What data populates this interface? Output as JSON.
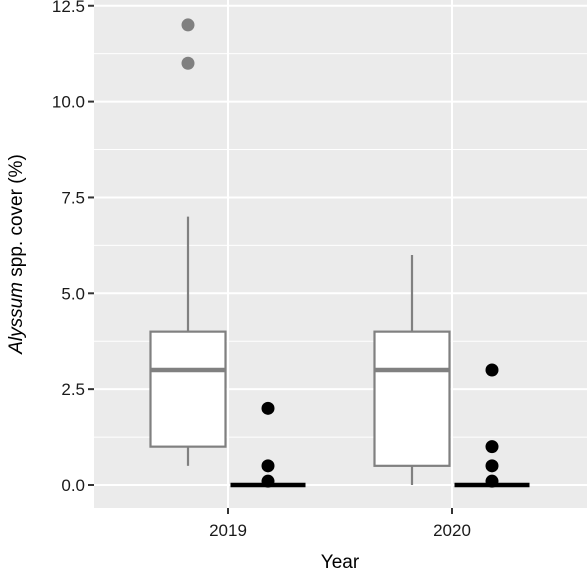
{
  "chart_data": {
    "type": "boxplot",
    "xlabel": "Year",
    "ylabel_italic": "Alyssum",
    "ylabel_rest": " spp. cover (%)",
    "ylim": [
      -0.6,
      12.65
    ],
    "yticks": [
      0.0,
      2.5,
      5.0,
      7.5,
      10.0,
      12.5
    ],
    "ytick_labels": [
      "0.0",
      "2.5",
      "5.0",
      "7.5",
      "10.0",
      "12.5"
    ],
    "categories": [
      "2019",
      "2020"
    ],
    "grid": true,
    "colors": {
      "panel": "#ebebeb",
      "grid": "#ffffff",
      "box_gray": "#808080",
      "box_black": "#000000"
    },
    "series": [
      {
        "color": "gray",
        "boxes": [
          {
            "category": "2019",
            "min": 0.5,
            "q1": 1.0,
            "median": 3.0,
            "q3": 4.0,
            "max": 7.0,
            "outliers": [
              11.0,
              12.0
            ]
          },
          {
            "category": "2020",
            "min": 0.0,
            "q1": 0.5,
            "median": 3.0,
            "q3": 4.0,
            "max": 6.0,
            "outliers": []
          }
        ]
      },
      {
        "color": "black",
        "boxes": [
          {
            "category": "2019",
            "min": 0.0,
            "q1": 0.0,
            "median": 0.0,
            "q3": 0.0,
            "max": 0.0,
            "outliers": [
              0.1,
              0.5,
              2.0
            ]
          },
          {
            "category": "2020",
            "min": 0.0,
            "q1": 0.0,
            "median": 0.0,
            "q3": 0.0,
            "max": 0.0,
            "outliers": [
              0.1,
              0.5,
              1.0,
              3.0
            ]
          }
        ]
      }
    ]
  }
}
